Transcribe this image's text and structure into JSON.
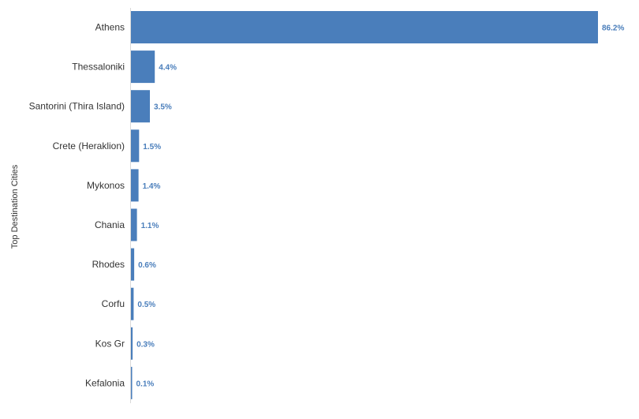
{
  "chart_data": {
    "type": "bar",
    "orientation": "horizontal",
    "title": "",
    "xlabel": "",
    "ylabel": "Top Destination Cities",
    "categories": [
      "Athens",
      "Thessaloniki",
      "Santorini (Thira Island)",
      "Crete (Heraklion)",
      "Mykonos",
      "Chania",
      "Rhodes",
      "Corfu",
      "Kos Gr",
      "Kefalonia"
    ],
    "values": [
      86.2,
      4.4,
      3.5,
      1.5,
      1.4,
      1.1,
      0.6,
      0.5,
      0.3,
      0.1
    ],
    "value_labels": [
      "86.2%",
      "4.4%",
      "3.5%",
      "1.5%",
      "1.4%",
      "1.1%",
      "0.6%",
      "0.5%",
      "0.3%",
      "0.1%"
    ],
    "xlim": [
      0,
      86.2
    ],
    "grid": false,
    "legend": "none",
    "colors": {
      "bar": "#4a7ebb",
      "value_label": "#4a7ebb",
      "axis": "#d9d9d9",
      "text": "#333333"
    }
  }
}
